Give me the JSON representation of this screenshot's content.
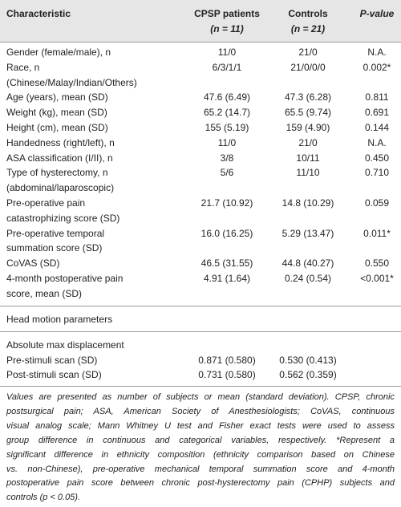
{
  "header": {
    "characteristic": "Characteristic",
    "cpsp": [
      "CPSP patients",
      "(n = 11)"
    ],
    "controls": [
      "Controls",
      "(n = 21)"
    ],
    "pvalue": "P-value"
  },
  "rows": [
    {
      "label": [
        "Gender (female/male), n"
      ],
      "cpsp": "11/0",
      "controls": "21/0",
      "p": "N.A."
    },
    {
      "label": [
        "Race, n",
        "(Chinese/Malay/Indian/Others)"
      ],
      "cpsp": "6/3/1/1",
      "controls": "21/0/0/0",
      "p": "0.002*"
    },
    {
      "label": [
        "Age (years), mean (SD)"
      ],
      "cpsp": "47.6 (6.49)",
      "controls": "47.3 (6.28)",
      "p": "0.811"
    },
    {
      "label": [
        "Weight (kg), mean (SD)"
      ],
      "cpsp": "65.2 (14.7)",
      "controls": "65.5 (9.74)",
      "p": "0.691"
    },
    {
      "label": [
        "Height (cm), mean (SD)"
      ],
      "cpsp": "155 (5.19)",
      "controls": "159 (4.90)",
      "p": "0.144"
    },
    {
      "label": [
        "Handedness (right/left), n"
      ],
      "cpsp": "11/0",
      "controls": "21/0",
      "p": "N.A."
    },
    {
      "label": [
        "ASA classification (I/II), n"
      ],
      "cpsp": "3/8",
      "controls": "10/11",
      "p": "0.450"
    },
    {
      "label": [
        "Type of hysterectomy, n",
        "(abdominal/laparoscopic)"
      ],
      "cpsp": "5/6",
      "controls": "11/10",
      "p": "0.710"
    },
    {
      "label": [
        "Pre-operative pain",
        "catastrophizing score (SD)"
      ],
      "cpsp": "21.7 (10.92)",
      "controls": "14.8 (10.29)",
      "p": "0.059"
    },
    {
      "label": [
        "Pre-operative temporal",
        "summation score (SD)"
      ],
      "cpsp": "16.0 (16.25)",
      "controls": "5.29 (13.47)",
      "p": "0.011*"
    },
    {
      "label": [
        "CoVAS (SD)"
      ],
      "cpsp": "46.5 (31.55)",
      "controls": "44.8 (40.27)",
      "p": "0.550"
    },
    {
      "label": [
        "4-month postoperative pain",
        "score, mean (SD)"
      ],
      "cpsp": "4.91 (1.64)",
      "controls": "0.24 (0.54)",
      "p": "<0.001*"
    }
  ],
  "section": {
    "title": "Head motion parameters",
    "subtitle": "Absolute max displacement",
    "rows": [
      {
        "label": [
          "Pre-stimuli scan (SD)"
        ],
        "cpsp": "0.871 (0.580)",
        "controls": "0.530 (0.413)"
      },
      {
        "label": [
          "Post-stimuli scan (SD)"
        ],
        "cpsp": "0.731 (0.580)",
        "controls": "0.562 (0.359)"
      }
    ]
  },
  "footnote": [
    "Values are presented as number of subjects or mean (standard deviation). CPSP, chronic",
    "postsurgical pain; ASA, American Society of Anesthesiologists; CoVAS, continuous",
    "visual analog scale; Mann Whitney U test and Fisher exact tests were used to assess",
    "group difference in continuous and categorical variables, respectively. *Represent a",
    "significant difference in ethnicity composition (ethnicity comparison based on Chinese",
    "vs. non-Chinese), pre-operative mechanical temporal summation score and 4-month",
    "postoperative pain score between chronic post-hysterectomy pain (CPHP) subjects and",
    "controls (p < 0.05)."
  ]
}
